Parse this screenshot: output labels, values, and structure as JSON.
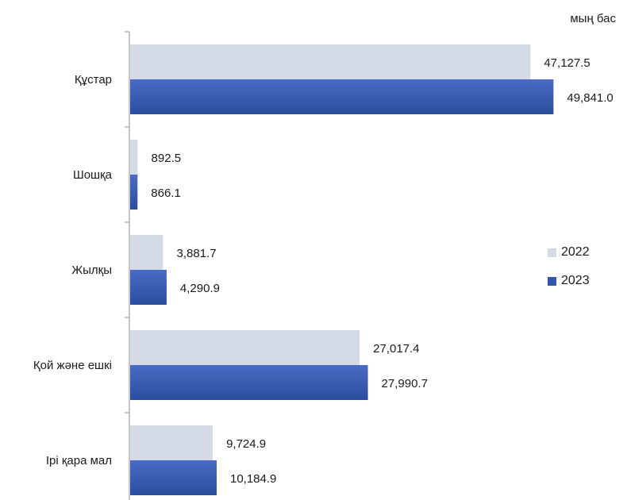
{
  "unit_label": "мың бас",
  "colors": {
    "series_2022": "#d5dbe5",
    "series_2023": "#3356ad",
    "axis": "#8c8c8c"
  },
  "chart_data": {
    "type": "bar",
    "orientation": "horizontal",
    "categories": [
      "Құстар",
      "Шошқа",
      "Жылқы",
      "Қой және ешкі",
      "Ірі қара мал"
    ],
    "series": [
      {
        "name": "2022",
        "values": [
          47127.5,
          892.5,
          3881.7,
          27017.4,
          9724.9
        ],
        "labels": [
          "47,127.5",
          "892.5",
          "3,881.7",
          "27,017.4",
          "9,724.9"
        ]
      },
      {
        "name": "2023",
        "values": [
          49841.0,
          866.1,
          4290.9,
          27990.7,
          10184.9
        ],
        "labels": [
          "49,841.0",
          "866.1",
          "4,290.9",
          "27,990.7",
          "10,184.9"
        ]
      }
    ],
    "xlim": [
      0,
      57000
    ],
    "legend": "right",
    "grid": false
  }
}
